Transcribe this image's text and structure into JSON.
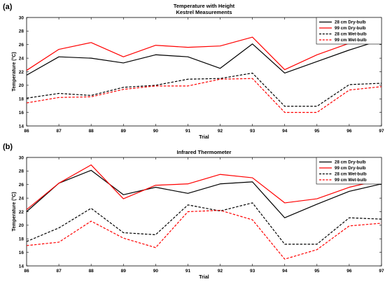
{
  "chart_data": [
    {
      "type": "line",
      "panel_label": "(a)",
      "title": "Temperature with Height",
      "subtitle": "Kestrel Measurements",
      "xlabel": "Trial",
      "ylabel": "Temperature (°C)",
      "x": [
        86,
        87,
        88,
        89,
        90,
        91,
        92,
        93,
        94,
        95,
        96,
        97
      ],
      "xlim": [
        86,
        97
      ],
      "ylim": [
        14,
        30
      ],
      "yticks": [
        14,
        16,
        18,
        20,
        22,
        24,
        26,
        28,
        30
      ],
      "grid": false,
      "legend_position": "top-right",
      "series": [
        {
          "name": "28 cm Dry-bulb",
          "color": "#000000",
          "dash": "solid",
          "values": [
            21.5,
            24.2,
            24.0,
            23.3,
            24.5,
            24.2,
            22.5,
            26.1,
            21.8,
            23.5,
            25.2,
            26.7
          ]
        },
        {
          "name": "99 cm Dry-bulb",
          "color": "#ff0000",
          "dash": "solid",
          "values": [
            22.2,
            25.3,
            26.3,
            24.2,
            25.9,
            25.6,
            25.8,
            27.1,
            22.3,
            24.5,
            26.2,
            27.4
          ]
        },
        {
          "name": "28 cm Wet-bulb",
          "color": "#000000",
          "dash": "dashed",
          "values": [
            18.1,
            18.8,
            18.5,
            19.7,
            20.0,
            20.9,
            21.0,
            21.8,
            16.9,
            16.9,
            20.1,
            20.3
          ]
        },
        {
          "name": "99 cm Wet-bulb",
          "color": "#ff0000",
          "dash": "dashed",
          "values": [
            17.4,
            18.2,
            18.3,
            19.4,
            19.9,
            19.9,
            20.9,
            21.0,
            16.0,
            16.0,
            19.3,
            19.8
          ]
        }
      ]
    },
    {
      "type": "line",
      "panel_label": "(b)",
      "title": "Infrared Thermometer",
      "xlabel": "Trial",
      "ylabel": "Temperature (°C)",
      "x": [
        86,
        87,
        88,
        89,
        90,
        91,
        92,
        93,
        94,
        95,
        96,
        97
      ],
      "xlim": [
        86,
        97
      ],
      "ylim": [
        14,
        30
      ],
      "yticks": [
        14,
        16,
        18,
        20,
        22,
        24,
        26,
        28,
        30
      ],
      "grid": false,
      "legend_position": "top-right",
      "series": [
        {
          "name": "28 cm Dry-bulb",
          "color": "#000000",
          "dash": "solid",
          "values": [
            22.0,
            26.2,
            28.1,
            24.5,
            25.6,
            24.7,
            26.1,
            26.4,
            21.1,
            23.1,
            25.0,
            26.1
          ]
        },
        {
          "name": "99 cm Dry-bulb",
          "color": "#ff0000",
          "dash": "solid",
          "values": [
            22.3,
            26.2,
            28.9,
            23.9,
            25.9,
            26.1,
            27.5,
            27.0,
            23.3,
            23.9,
            25.6,
            26.7
          ]
        },
        {
          "name": "28 cm Wet-bulb",
          "color": "#000000",
          "dash": "dashed",
          "values": [
            17.6,
            19.6,
            22.5,
            18.9,
            18.6,
            23.0,
            22.1,
            23.3,
            17.2,
            17.2,
            21.1,
            20.9
          ]
        },
        {
          "name": "99 cm Wet-bulb",
          "color": "#ff0000",
          "dash": "dashed",
          "values": [
            17.0,
            17.5,
            20.6,
            18.1,
            16.7,
            22.0,
            22.2,
            20.8,
            15.0,
            16.4,
            19.9,
            20.3
          ]
        }
      ]
    }
  ]
}
